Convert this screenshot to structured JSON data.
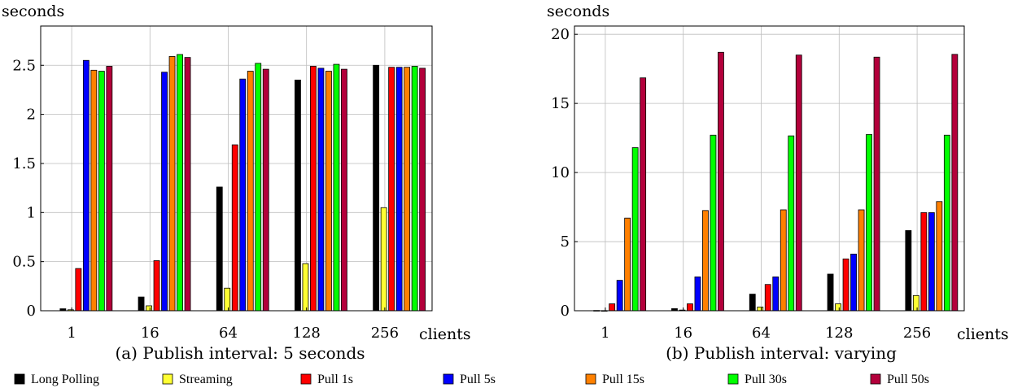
{
  "colors": {
    "Long Polling": "#000000",
    "Streaming": "#ffff33",
    "Pull 1s": "#ff0000",
    "Pull 5s": "#0000ff",
    "Pull 15s": "#ff8000",
    "Pull 30s": "#00ff00",
    "Pull 50s": "#b3003b"
  },
  "legend": [
    "Long Polling",
    "Streaming",
    "Pull 1s",
    "Pull 5s",
    "Pull 15s",
    "Pull 30s",
    "Pull 50s"
  ],
  "chart_data": [
    {
      "type": "bar",
      "title": "(a) Publish interval: 5 seconds",
      "ylabel": "seconds",
      "xlabel": "clients",
      "categories": [
        "1",
        "16",
        "64",
        "128",
        "256"
      ],
      "ylim": [
        0,
        2.9
      ],
      "yticks": [
        0,
        0.5,
        1,
        1.5,
        2,
        2.5
      ],
      "ytick_labels": [
        "0",
        "0.5",
        "1",
        "1.5",
        "2",
        "2.5"
      ],
      "grid": true,
      "series": [
        {
          "name": "Long Polling",
          "values": [
            0.02,
            0.14,
            1.26,
            2.35,
            2.5
          ]
        },
        {
          "name": "Streaming",
          "values": [
            0.01,
            0.05,
            0.23,
            0.48,
            1.05
          ]
        },
        {
          "name": "Pull 1s",
          "values": [
            0.43,
            0.51,
            1.69,
            2.49,
            2.48
          ]
        },
        {
          "name": "Pull 5s",
          "values": [
            2.55,
            2.43,
            2.36,
            2.47,
            2.48
          ]
        },
        {
          "name": "Pull 15s",
          "values": [
            2.45,
            2.59,
            2.44,
            2.44,
            2.48
          ]
        },
        {
          "name": "Pull 30s",
          "values": [
            2.44,
            2.61,
            2.52,
            2.51,
            2.49
          ]
        },
        {
          "name": "Pull 50s",
          "values": [
            2.49,
            2.58,
            2.46,
            2.46,
            2.47
          ]
        }
      ]
    },
    {
      "type": "bar",
      "title": "(b) Publish interval: varying",
      "ylabel": "seconds",
      "xlabel": "clients",
      "categories": [
        "1",
        "16",
        "64",
        "128",
        "256"
      ],
      "ylim": [
        0,
        20.6
      ],
      "yticks": [
        0,
        5,
        10,
        15,
        20
      ],
      "ytick_labels": [
        "0",
        "5",
        "10",
        "15",
        "20"
      ],
      "grid": true,
      "series": [
        {
          "name": "Long Polling",
          "values": [
            0.02,
            0.15,
            1.2,
            2.65,
            5.8
          ]
        },
        {
          "name": "Streaming",
          "values": [
            0.01,
            0.05,
            0.27,
            0.5,
            1.1
          ]
        },
        {
          "name": "Pull 1s",
          "values": [
            0.5,
            0.5,
            1.9,
            3.75,
            7.1
          ]
        },
        {
          "name": "Pull 5s",
          "values": [
            2.2,
            2.45,
            2.45,
            4.1,
            7.1
          ]
        },
        {
          "name": "Pull 15s",
          "values": [
            6.7,
            7.25,
            7.3,
            7.3,
            7.9
          ]
        },
        {
          "name": "Pull 30s",
          "values": [
            11.8,
            12.7,
            12.65,
            12.75,
            12.7
          ]
        },
        {
          "name": "Pull 50s",
          "values": [
            16.85,
            18.7,
            18.5,
            18.35,
            18.55
          ]
        }
      ]
    }
  ]
}
